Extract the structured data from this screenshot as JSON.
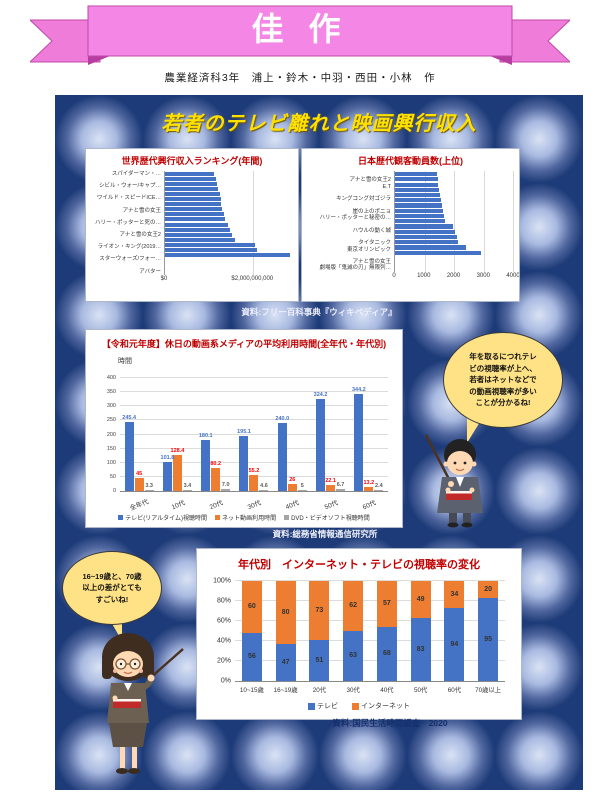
{
  "award": {
    "label": "佳 作"
  },
  "byline": "農業経済科3年　浦上・鈴木・中羽・西田・小林　作",
  "main_title": "若者のテレビ離れと映画興行収入",
  "colors": {
    "ribbon_pink": "#f486e6",
    "ribbon_dark_pink": "#b83da0",
    "panel_blue_dark": "#1d3b78",
    "panel_blue_light": "#d9e2f5",
    "title_yellow": "#ffe100",
    "chart_title_red": "#c00000",
    "bar_blue": "#4472c4",
    "bar_orange": "#ed7d31",
    "bar_gray": "#a5a5a5",
    "value_label_red": "#ff0000",
    "bubble_yellow": "#ffe285",
    "caption_light": "#eef0fa",
    "caption_navy": "#16306e"
  },
  "icons": {
    "ribbon": "award-ribbon-banner",
    "right_character": "male-teacher-illustration",
    "left_character": "female-teacher-illustration"
  },
  "captions": {
    "wikipedia": "資料:フリー百科事典『ウィキペディア』",
    "soumu": "資料:総務省情報通信研究所",
    "kokumin": "資料:国民生活時間調査　2020"
  },
  "bubbles": {
    "right": {
      "lines": [
        "年を取るにつれテレ",
        "ビの視聴率が上へ、",
        "若者はネットなどで",
        "の動画視聴率が多い",
        "ことが分かるね!"
      ]
    },
    "left": {
      "lines": [
        "16~19歳と、70歳",
        "以上の差がとても",
        "すごいね!"
      ]
    }
  },
  "chart_data": [
    {
      "id": "world-box-office",
      "type": "bar",
      "orientation": "horizontal",
      "title": "世界歴代興行収入ランキング(年間)",
      "categories": [
        "スパイダーマン・…",
        "",
        "シビル・ウォー/キャプ…",
        "",
        "ワイルド・スピードICE…",
        "",
        "アナと雪の女王",
        "",
        "ハリー・ポッターと死の…",
        "",
        "アナと雪の女王2",
        "",
        "ライオン・キング(2019…",
        "",
        "スターウォーズ/フォー…",
        "",
        "アバター"
      ],
      "values": [
        1.13,
        1.16,
        1.19,
        1.22,
        1.25,
        1.27,
        1.29,
        1.31,
        1.34,
        1.38,
        1.43,
        1.48,
        1.52,
        1.6,
        2.05,
        2.1,
        2.85
      ],
      "x_unit": "USD billions",
      "xlim": [
        0,
        2.9
      ],
      "x_gridlines": [
        2.0
      ],
      "x_ticks": [
        {
          "label": "$0",
          "v": 0
        },
        {
          "label": "$2,000,000,000",
          "v": 2.0
        }
      ],
      "bar_color": "#4472c4",
      "grid": true
    },
    {
      "id": "japan-attendance",
      "type": "bar",
      "orientation": "horizontal",
      "title": "日本歴代観客動員数(上位)",
      "categories": [
        "",
        "アナと雪の女王2",
        "E.T",
        "",
        "キングコング対ゴジラ",
        "",
        "崖の上のポニョ",
        "ハリー・ポッターと秘密の…",
        "",
        "ハウルの動く城",
        "",
        "タイタニック",
        "東京オリンピック",
        "",
        "アナと雪の女王",
        "劇場版「鬼滅の刃」無限列…"
      ],
      "values": [
        1420,
        1450,
        1470,
        1500,
        1520,
        1550,
        1580,
        1620,
        1650,
        1700,
        1950,
        2050,
        2100,
        2130,
        2400,
        2900
      ],
      "xlim": [
        0,
        4000
      ],
      "x_gridlines": [
        1000,
        2000,
        3000,
        4000
      ],
      "x_ticks": [
        {
          "label": "0",
          "v": 0
        },
        {
          "label": "1000",
          "v": 1000
        },
        {
          "label": "2000",
          "v": 2000
        },
        {
          "label": "3000",
          "v": 3000
        },
        {
          "label": "4000",
          "v": 4000
        }
      ],
      "bar_color": "#4472c4",
      "grid": true
    },
    {
      "id": "media-usage-time",
      "type": "bar",
      "orientation": "vertical",
      "grouped": true,
      "title": "【令和元年度】休日の動画系メディアの平均利用時間(全年代・年代別)",
      "ylabel": "時間",
      "categories": [
        "全年代",
        "10代",
        "20代",
        "30代",
        "40代",
        "50代",
        "60代"
      ],
      "series": [
        {
          "name": "テレビ(リアルタイム)視聴時間",
          "color": "#4472c4",
          "label_color": "#4472c4",
          "values": [
            245.4,
            101.8,
            180.1,
            195.1,
            240.0,
            324.2,
            344.2
          ],
          "labels": [
            "245.4",
            "101.8",
            "180.1",
            "195.1",
            "240.0",
            "324.2",
            "344.2"
          ]
        },
        {
          "name": "ネット動画利用時間",
          "color": "#ed7d31",
          "label_color": "#ff0000",
          "values": [
            45,
            128.4,
            80.2,
            55.2,
            26,
            22.1,
            13.2
          ],
          "labels": [
            "45",
            "128.4",
            "80.2",
            "55.2",
            "26",
            "22.1",
            "13.2"
          ]
        },
        {
          "name": "DVD・ビデオソフト視聴時間",
          "color": "#a5a5a5",
          "label_color": "#595959",
          "values": [
            3.3,
            3.4,
            7.0,
            4.6,
            5,
            6.7,
            2.4
          ],
          "labels": [
            "3.3",
            "3.4",
            "7.0",
            "4.6",
            "5",
            "6.7",
            "2.4"
          ]
        }
      ],
      "ylim": [
        0,
        400
      ],
      "y_tick_step": 50,
      "grid": true,
      "legend_position": "bottom"
    },
    {
      "id": "viewing-rate-by-age",
      "type": "bar",
      "stacked": true,
      "percent": true,
      "title": "年代別　インターネット・テレビの視聴率の変化",
      "categories": [
        "10~15歳",
        "16~19歳",
        "20代",
        "30代",
        "40代",
        "50代",
        "60代",
        "70歳以上"
      ],
      "series": [
        {
          "name": "テレビ",
          "color": "#4472c4",
          "values": [
            56,
            47,
            51,
            63,
            68,
            83,
            94,
            95
          ]
        },
        {
          "name": "インターネット",
          "color": "#ed7d31",
          "values": [
            60,
            80,
            73,
            62,
            57,
            49,
            34,
            20
          ]
        }
      ],
      "y_ticks": [
        "0%",
        "20%",
        "40%",
        "60%",
        "80%",
        "100%"
      ],
      "grid": true,
      "legend_position": "bottom"
    }
  ]
}
